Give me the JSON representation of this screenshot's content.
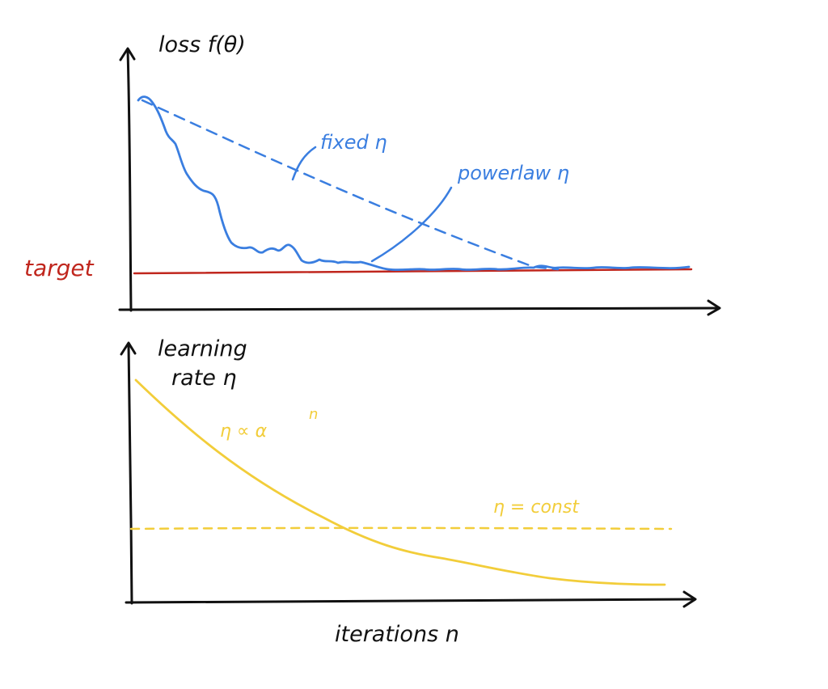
{
  "colors": {
    "ink": "#111111",
    "blue": "#3a7ee0",
    "red": "#c0261d",
    "yellow": "#f2cd3a"
  },
  "top_panel": {
    "y_axis_label": "loss f(θ)",
    "target_label": "target",
    "fixed_label": "fixed η",
    "powerlaw_label": "powerlaw η"
  },
  "bottom_panel": {
    "y_axis_label_line1": "learning",
    "y_axis_label_line2": "rate η",
    "decay_label_main": "η ∝ α",
    "decay_label_exp": "n",
    "const_label": "η = const",
    "x_axis_label": "iterations n"
  }
}
